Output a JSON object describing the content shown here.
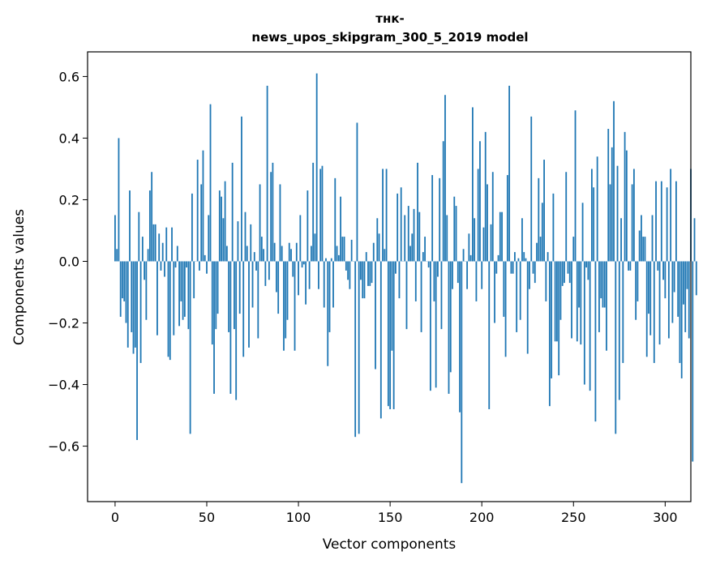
{
  "chart_data": {
    "type": "bar",
    "title_lines": [
      "тнк-",
      "news_upos_skipgram_300_5_2019 model"
    ],
    "xlabel": "Vector components",
    "ylabel": "Components values",
    "xlim": [
      -15,
      314
    ],
    "ylim": [
      -0.78,
      0.68
    ],
    "xticks": [
      0,
      50,
      100,
      150,
      200,
      250,
      300
    ],
    "yticks": [
      -0.6,
      -0.4,
      -0.2,
      0.0,
      0.2,
      0.4,
      0.6
    ],
    "ytick_labels": [
      "−0.6",
      "−0.4",
      "−0.2",
      "0.0",
      "0.2",
      "0.4",
      "0.6"
    ],
    "bar_color": "#1f77b4",
    "grid": false,
    "values": [
      0.15,
      0.04,
      0.4,
      -0.18,
      -0.12,
      -0.13,
      -0.2,
      -0.28,
      0.23,
      -0.23,
      -0.3,
      -0.28,
      -0.58,
      0.16,
      -0.33,
      0.08,
      -0.06,
      -0.19,
      0.04,
      0.23,
      0.29,
      0.12,
      0.12,
      -0.24,
      0.09,
      -0.03,
      0.06,
      -0.05,
      0.11,
      -0.31,
      -0.32,
      0.11,
      -0.24,
      -0.02,
      0.05,
      -0.21,
      -0.13,
      -0.19,
      -0.18,
      -0.02,
      -0.22,
      -0.56,
      0.22,
      -0.12,
      0.0,
      0.33,
      -0.03,
      0.25,
      0.36,
      0.02,
      -0.04,
      0.15,
      0.51,
      -0.27,
      -0.43,
      -0.22,
      -0.17,
      0.23,
      0.21,
      0.14,
      0.26,
      0.05,
      -0.23,
      -0.43,
      0.32,
      -0.22,
      -0.45,
      0.13,
      -0.17,
      0.47,
      -0.31,
      0.16,
      0.05,
      -0.28,
      0.12,
      -0.15,
      0.03,
      -0.03,
      -0.25,
      0.25,
      0.08,
      0.04,
      -0.08,
      0.57,
      -0.06,
      0.29,
      0.32,
      0.06,
      -0.1,
      -0.17,
      0.25,
      0.05,
      -0.29,
      -0.25,
      -0.19,
      0.06,
      0.04,
      -0.05,
      -0.29,
      0.06,
      -0.11,
      0.15,
      -0.02,
      -0.01,
      -0.14,
      0.23,
      -0.09,
      0.05,
      0.32,
      0.09,
      0.61,
      -0.09,
      0.3,
      0.31,
      -0.15,
      0.01,
      -0.34,
      -0.23,
      0.01,
      -0.15,
      0.27,
      0.05,
      0.02,
      0.21,
      0.08,
      0.08,
      -0.03,
      -0.06,
      -0.09,
      0.07,
      0.0,
      -0.57,
      0.45,
      -0.56,
      -0.06,
      -0.12,
      -0.12,
      0.03,
      -0.08,
      -0.08,
      -0.07,
      0.06,
      -0.35,
      0.14,
      0.09,
      -0.51,
      0.3,
      0.04,
      0.3,
      -0.47,
      -0.48,
      -0.29,
      -0.48,
      -0.04,
      0.22,
      -0.12,
      0.24,
      0.0,
      0.15,
      -0.22,
      0.18,
      0.05,
      0.09,
      0.17,
      -0.13,
      0.32,
      0.16,
      -0.23,
      0.03,
      0.08,
      0.0,
      -0.02,
      -0.42,
      0.28,
      -0.13,
      -0.41,
      -0.05,
      0.27,
      -0.22,
      0.39,
      0.54,
      0.15,
      -0.43,
      -0.36,
      -0.09,
      0.21,
      0.18,
      -0.07,
      -0.49,
      -0.72,
      0.04,
      0.0,
      -0.09,
      0.09,
      0.02,
      0.5,
      0.14,
      -0.13,
      0.3,
      0.39,
      -0.09,
      0.11,
      0.42,
      0.25,
      -0.48,
      0.12,
      0.29,
      -0.2,
      -0.04,
      0.02,
      0.16,
      0.16,
      -0.18,
      -0.31,
      0.28,
      0.57,
      -0.04,
      -0.04,
      0.03,
      -0.23,
      0.01,
      -0.19,
      0.14,
      0.03,
      0.01,
      -0.3,
      -0.09,
      0.47,
      -0.04,
      -0.07,
      0.06,
      0.27,
      0.08,
      0.19,
      0.33,
      -0.13,
      0.03,
      -0.47,
      -0.38,
      0.22,
      -0.26,
      -0.26,
      -0.37,
      -0.19,
      -0.08,
      -0.07,
      0.29,
      -0.04,
      -0.07,
      -0.25,
      0.08,
      0.49,
      -0.26,
      -0.15,
      -0.27,
      0.19,
      -0.4,
      -0.02,
      -0.06,
      -0.42,
      0.3,
      0.24,
      -0.52,
      0.34,
      -0.23,
      -0.12,
      -0.15,
      -0.15,
      -0.29,
      0.43,
      0.25,
      0.37,
      0.52,
      -0.56,
      0.31,
      -0.45,
      0.14,
      -0.33,
      0.42,
      0.36,
      -0.03,
      -0.03,
      0.25,
      0.3,
      -0.19,
      -0.13,
      0.1,
      0.15,
      0.08,
      0.08,
      -0.31,
      -0.17,
      -0.24,
      0.15,
      -0.33,
      0.26,
      -0.03,
      -0.27,
      0.26,
      -0.06,
      -0.12,
      0.24,
      -0.25,
      0.3,
      -0.2,
      -0.1,
      0.26,
      -0.18,
      -0.33,
      -0.38,
      -0.14,
      -0.23,
      -0.09,
      -0.25,
      0.3,
      -0.65,
      0.14,
      -0.11
    ]
  }
}
